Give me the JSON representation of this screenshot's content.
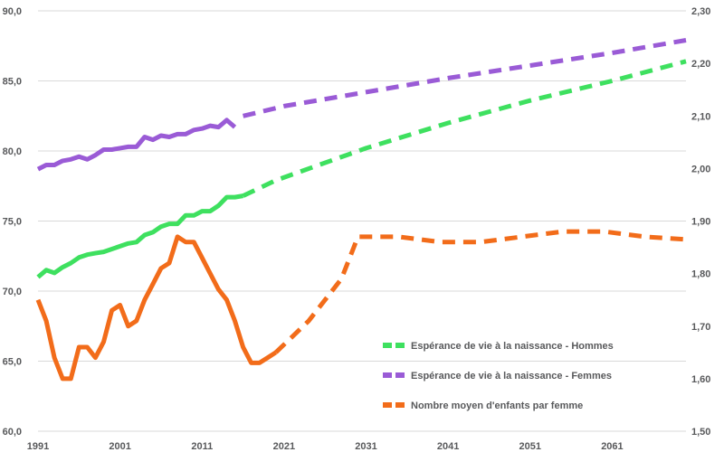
{
  "chart_data": {
    "type": "line",
    "title": "",
    "xlabel": "",
    "ylabel": "",
    "y2label": "",
    "xlim": [
      1991,
      2070
    ],
    "ylim": [
      60,
      90
    ],
    "y2lim": [
      1.5,
      2.3
    ],
    "x_ticks": [
      "1991",
      "2001",
      "2011",
      "2021",
      "2031",
      "2041",
      "2051",
      "2061"
    ],
    "y_ticks": [
      "60,0",
      "65,0",
      "70,0",
      "75,0",
      "80,0",
      "85,0",
      "90,0"
    ],
    "y2_ticks": [
      "1,50",
      "1,60",
      "1,70",
      "1,80",
      "1,90",
      "2,00",
      "2,10",
      "2,20",
      "2,30"
    ],
    "grid": true,
    "legend_position": "bottom-right",
    "series": [
      {
        "name": "Espérance de vie à la naissance - Hommes",
        "axis": "left",
        "color": "#3ee05f",
        "observed": [
          [
            1991,
            71.0
          ],
          [
            1992,
            71.5
          ],
          [
            1993,
            71.3
          ],
          [
            1994,
            71.7
          ],
          [
            1995,
            72.0
          ],
          [
            1996,
            72.4
          ],
          [
            1997,
            72.6
          ],
          [
            1998,
            72.7
          ],
          [
            1999,
            72.8
          ],
          [
            2000,
            73.0
          ],
          [
            2001,
            73.2
          ],
          [
            2002,
            73.4
          ],
          [
            2003,
            73.5
          ],
          [
            2004,
            74.0
          ],
          [
            2005,
            74.2
          ],
          [
            2006,
            74.6
          ],
          [
            2007,
            74.8
          ],
          [
            2008,
            74.8
          ],
          [
            2009,
            75.4
          ],
          [
            2010,
            75.4
          ],
          [
            2011,
            75.7
          ],
          [
            2012,
            75.7
          ],
          [
            2013,
            76.1
          ],
          [
            2014,
            76.7
          ],
          [
            2015,
            76.7
          ],
          [
            2016,
            76.8
          ]
        ],
        "projected": [
          [
            2016,
            76.8
          ],
          [
            2020,
            77.9
          ],
          [
            2031,
            80.2
          ],
          [
            2041,
            82.0
          ],
          [
            2051,
            83.6
          ],
          [
            2061,
            85.0
          ],
          [
            2070,
            86.4
          ]
        ]
      },
      {
        "name": "Espérance de vie à la naissance - Femmes",
        "axis": "left",
        "color": "#9a5bd6",
        "observed": [
          [
            1991,
            78.7
          ],
          [
            1992,
            79.0
          ],
          [
            1993,
            79.0
          ],
          [
            1994,
            79.3
          ],
          [
            1995,
            79.4
          ],
          [
            1996,
            79.6
          ],
          [
            1997,
            79.4
          ],
          [
            1998,
            79.7
          ],
          [
            1999,
            80.1
          ],
          [
            2000,
            80.1
          ],
          [
            2001,
            80.2
          ],
          [
            2002,
            80.3
          ],
          [
            2003,
            80.3
          ],
          [
            2004,
            81.0
          ],
          [
            2005,
            80.8
          ],
          [
            2006,
            81.1
          ],
          [
            2007,
            81.0
          ],
          [
            2008,
            81.2
          ],
          [
            2009,
            81.2
          ],
          [
            2010,
            81.5
          ],
          [
            2011,
            81.6
          ],
          [
            2012,
            81.8
          ],
          [
            2013,
            81.7
          ],
          [
            2014,
            82.2
          ],
          [
            2015,
            81.7
          ]
        ],
        "projected": [
          [
            2016,
            82.5
          ],
          [
            2021,
            83.2
          ],
          [
            2031,
            84.2
          ],
          [
            2041,
            85.2
          ],
          [
            2051,
            86.1
          ],
          [
            2061,
            87.0
          ],
          [
            2070,
            87.9
          ]
        ]
      },
      {
        "name": "Nombre moyen d'enfants par femme",
        "axis": "right",
        "color": "#f26c1a",
        "observed": [
          [
            1991,
            1.75
          ],
          [
            1992,
            1.71
          ],
          [
            1993,
            1.64
          ],
          [
            1994,
            1.6
          ],
          [
            1995,
            1.6
          ],
          [
            1996,
            1.66
          ],
          [
            1997,
            1.66
          ],
          [
            1998,
            1.64
          ],
          [
            1999,
            1.67
          ],
          [
            2000,
            1.73
          ],
          [
            2001,
            1.74
          ],
          [
            2002,
            1.7
          ],
          [
            2003,
            1.71
          ],
          [
            2004,
            1.75
          ],
          [
            2005,
            1.78
          ],
          [
            2006,
            1.81
          ],
          [
            2007,
            1.82
          ],
          [
            2008,
            1.87
          ],
          [
            2009,
            1.86
          ],
          [
            2010,
            1.86
          ],
          [
            2011,
            1.83
          ],
          [
            2012,
            1.8
          ],
          [
            2013,
            1.77
          ],
          [
            2014,
            1.75
          ],
          [
            2015,
            1.71
          ],
          [
            2016,
            1.66
          ],
          [
            2017,
            1.63
          ],
          [
            2018,
            1.63
          ],
          [
            2019,
            1.64
          ],
          [
            2020,
            1.65
          ]
        ],
        "projected": [
          [
            2020,
            1.65
          ],
          [
            2022,
            1.68
          ],
          [
            2024,
            1.71
          ],
          [
            2026,
            1.75
          ],
          [
            2028,
            1.79
          ],
          [
            2030,
            1.87
          ],
          [
            2035,
            1.87
          ],
          [
            2040,
            1.86
          ],
          [
            2045,
            1.86
          ],
          [
            2050,
            1.87
          ],
          [
            2055,
            1.88
          ],
          [
            2060,
            1.88
          ],
          [
            2065,
            1.87
          ],
          [
            2070,
            1.865
          ]
        ]
      }
    ]
  }
}
